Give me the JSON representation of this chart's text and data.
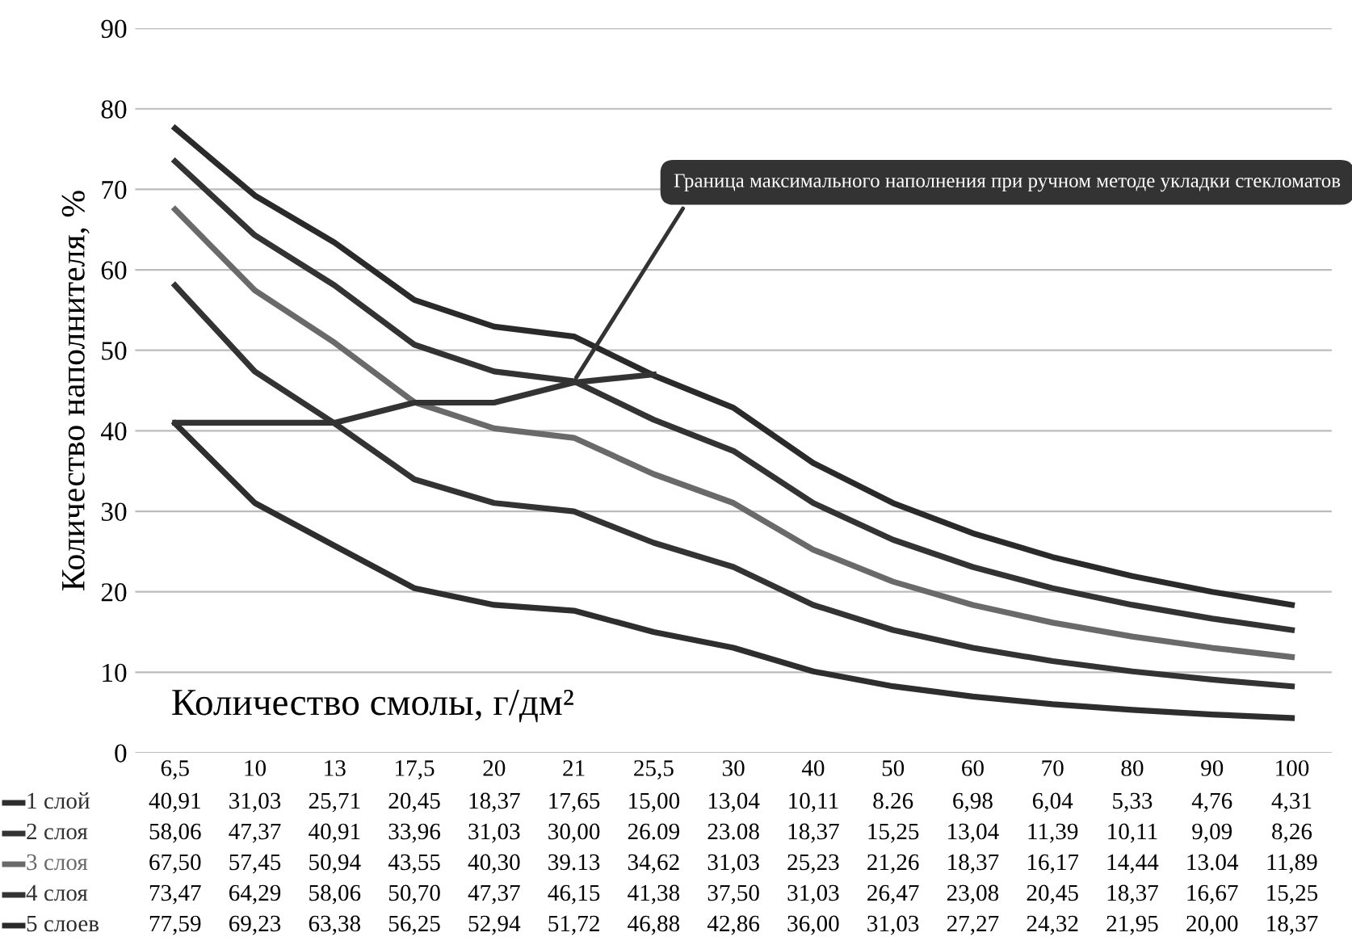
{
  "chart_data": {
    "type": "line",
    "xlabel": "Количество смолы, г/дм²",
    "ylabel": "Количество наполнителя, %",
    "categories": [
      "6,5",
      "10",
      "13",
      "17,5",
      "20",
      "21",
      "25,5",
      "30",
      "40",
      "50",
      "60",
      "70",
      "80",
      "90",
      "100"
    ],
    "ylim": [
      0,
      90
    ],
    "yticks": [
      0,
      10,
      20,
      30,
      40,
      50,
      60,
      70,
      80,
      90
    ],
    "grid": "y",
    "legend": "bottom left",
    "marker": "none",
    "line_style": "solid",
    "series": [
      {
        "name": "1 слой",
        "color": "#2e2e2e",
        "values": [
          40.91,
          31.03,
          25.71,
          20.45,
          18.37,
          17.65,
          15.0,
          13.04,
          10.11,
          8.26,
          6.98,
          6.04,
          5.33,
          4.76,
          4.31
        ],
        "value_labels": [
          "40,91",
          "31,03",
          "25,71",
          "20,45",
          "18,37",
          "17,65",
          "15,00",
          "13,04",
          "10,11",
          "8.26",
          "6,98",
          "6,04",
          "5,33",
          "4,76",
          "4,31"
        ]
      },
      {
        "name": "2 слоя",
        "color": "#333333",
        "values": [
          58.06,
          47.37,
          40.91,
          33.96,
          31.03,
          30.0,
          26.09,
          23.08,
          18.37,
          15.25,
          13.04,
          11.39,
          10.11,
          9.09,
          8.26
        ],
        "value_labels": [
          "58,06",
          "47,37",
          "40,91",
          "33,96",
          "31,03",
          "30,00",
          "26.09",
          "23.08",
          "18,37",
          "15,25",
          "13,04",
          "11,39",
          "10,11",
          "9,09",
          "8,26"
        ]
      },
      {
        "name": "3 слоя",
        "color": "#6a6a6a",
        "values": [
          67.5,
          57.45,
          50.94,
          43.55,
          40.3,
          39.13,
          34.62,
          31.03,
          25.23,
          21.26,
          18.37,
          16.17,
          14.44,
          13.04,
          11.89
        ],
        "value_labels": [
          "67,50",
          "57,45",
          "50,94",
          "43,55",
          "40,30",
          "39.13",
          "34,62",
          "31,03",
          "25,23",
          "21,26",
          "18,37",
          "16,17",
          "14,44",
          "13.04",
          "11,89"
        ]
      },
      {
        "name": "4 слоя",
        "color": "#333333",
        "values": [
          73.47,
          64.29,
          58.06,
          50.7,
          47.37,
          46.15,
          41.38,
          37.5,
          31.03,
          26.47,
          23.08,
          20.45,
          18.37,
          16.67,
          15.25
        ],
        "value_labels": [
          "73,47",
          "64,29",
          "58,06",
          "50,70",
          "47,37",
          "46,15",
          "41,38",
          "37,50",
          "31,03",
          "26,47",
          "23,08",
          "20,45",
          "18,37",
          "16,67",
          "15,25"
        ]
      },
      {
        "name": "5 слоев",
        "color": "#2a2a2a",
        "values": [
          77.59,
          69.23,
          63.38,
          56.25,
          52.94,
          51.72,
          46.88,
          42.86,
          36.0,
          31.03,
          27.27,
          24.32,
          21.95,
          20.0,
          18.37
        ],
        "value_labels": [
          "77,59",
          "69,23",
          "63,38",
          "56,25",
          "52,94",
          "51,72",
          "46,88",
          "42,86",
          "36,00",
          "31,03",
          "27,27",
          "24,32",
          "21,95",
          "20,00",
          "18,37"
        ]
      },
      {
        "color": "#333333",
        "values": [
          41,
          41,
          41,
          43.5,
          43.5,
          46,
          47,
          null,
          null,
          null,
          null,
          null,
          null,
          null,
          null
        ]
      }
    ],
    "annotations": [
      {
        "text": "Граница максимального наполнения при ручном методе укладки стекломатов",
        "x": "21",
        "y": 46.15
      }
    ]
  }
}
